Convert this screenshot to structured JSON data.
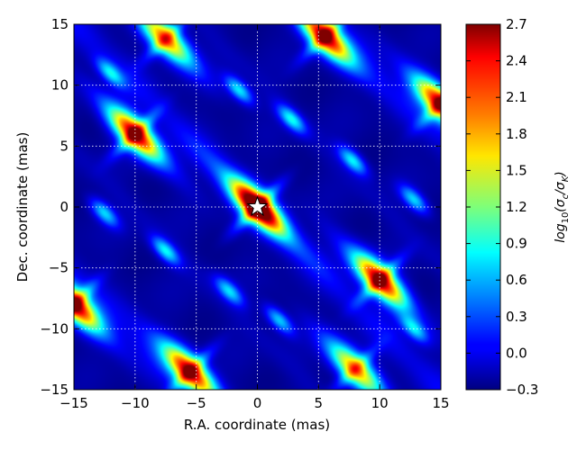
{
  "chart_data": {
    "type": "heatmap",
    "xlabel": "R.A. coordinate (mas)",
    "ylabel": "Dec. coordinate (mas)",
    "xlim": [
      -15,
      15
    ],
    "ylim": [
      -15,
      15
    ],
    "xticks": [
      -15,
      -10,
      -5,
      0,
      5,
      10,
      15
    ],
    "yticks": [
      -15,
      -10,
      -5,
      0,
      5,
      10,
      15
    ],
    "xtick_labels": [
      "−15",
      "−10",
      "−5",
      "0",
      "5",
      "10",
      "15"
    ],
    "ytick_labels": [
      "−15",
      "−10",
      "−5",
      "0",
      "5",
      "10",
      "15"
    ],
    "grid": true,
    "colormap": "jet",
    "colorbar": {
      "label": "log10(σc/σK)",
      "range": [
        -0.3,
        2.7
      ],
      "ticks": [
        -0.3,
        0.0,
        0.3,
        0.6,
        0.9,
        1.2,
        1.5,
        1.8,
        2.1,
        2.4,
        2.7
      ],
      "tick_labels": [
        "−0.3",
        "0.0",
        "0.3",
        "0.6",
        "0.9",
        "1.2",
        "1.5",
        "1.8",
        "2.1",
        "2.4",
        "2.7"
      ]
    },
    "marker": {
      "shape": "star",
      "x": 0,
      "y": 0,
      "color": "#ffffff"
    },
    "peaks": [
      {
        "x": 0.0,
        "y": 0.0,
        "value": 2.6
      },
      {
        "x": -10.0,
        "y": 6.0,
        "value": 2.1
      },
      {
        "x": 10.0,
        "y": -6.0,
        "value": 2.1
      },
      {
        "x": 5.5,
        "y": 14.0,
        "value": 2.0
      },
      {
        "x": -5.5,
        "y": -13.5,
        "value": 2.0
      },
      {
        "x": 15.0,
        "y": 8.5,
        "value": 2.0
      },
      {
        "x": -15.0,
        "y": -8.0,
        "value": 2.1
      },
      {
        "x": -7.5,
        "y": 13.8,
        "value": 1.6
      },
      {
        "x": 8.0,
        "y": -13.3,
        "value": 1.5
      },
      {
        "x": -1.5,
        "y": 9.6,
        "value": 0.8
      },
      {
        "x": 2.8,
        "y": 7.2,
        "value": 0.8
      },
      {
        "x": -7.5,
        "y": -3.6,
        "value": 0.8
      },
      {
        "x": 7.8,
        "y": 3.8,
        "value": 0.8
      },
      {
        "x": -12.5,
        "y": -0.5,
        "value": 0.7
      },
      {
        "x": 12.8,
        "y": 0.6,
        "value": 0.7
      },
      {
        "x": -2.3,
        "y": -6.9,
        "value": 0.7
      },
      {
        "x": 1.8,
        "y": -9.3,
        "value": 0.7
      },
      {
        "x": -12.0,
        "y": 11.0,
        "value": 0.7
      },
      {
        "x": 12.8,
        "y": -10.0,
        "value": 0.7
      }
    ]
  }
}
